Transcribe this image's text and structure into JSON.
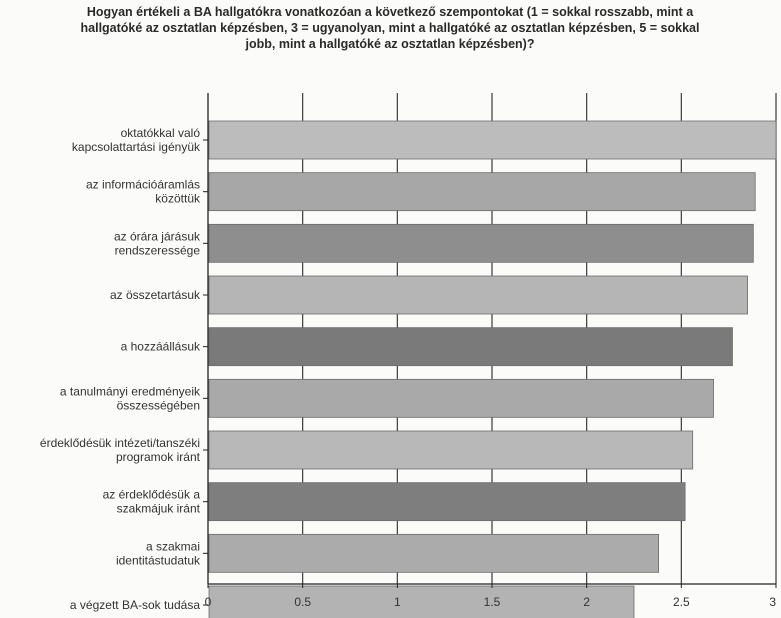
{
  "chart_data": {
    "type": "bar",
    "orientation": "horizontal",
    "title": "Hogyan értékeli a BA hallgatókra vonatkozóan a következő szempontokat (1 = sokkal rosszabb, mint a\nhallgatóké az osztatlan képzésben, 3 = ugyanolyan, mint a hallgatóké az osztatlan képzésben, 5 = sokkal\njobb, mint a hallgatóké az osztatlan képzésben)?",
    "categories": [
      "oktatókkal való kapcsolattartási igényük",
      "az információáramlás közöttük",
      "az órára járásuk rendszeressége",
      "az összetartásuk",
      "a hozzáállásuk",
      "a tanulmányi eredményeik összességében",
      "érdeklődésük intézeti/tanszéki programok iránt",
      "az érdeklődésük a szakmájuk iránt",
      "a szakmai identitástudatuk",
      "a végzett BA-sok tudása"
    ],
    "label_lines": [
      [
        "oktatókkal való",
        "kapcsolattartási igényük"
      ],
      [
        "az információáramlás",
        "közöttük"
      ],
      [
        "az órára járásuk",
        "rendszeressége"
      ],
      [
        "az összetartásuk"
      ],
      [
        "a hozzáállásuk"
      ],
      [
        "a tanulmányi eredményeik",
        "összességében"
      ],
      [
        "érdeklődésük intézeti/tanszéki",
        "programok iránt"
      ],
      [
        "az érdeklődésük a",
        "szakmájuk iránt"
      ],
      [
        "a szakmai",
        "identitástudatuk"
      ],
      [
        "a végzett BA-sok tudása"
      ]
    ],
    "values": [
      3.0,
      2.89,
      2.88,
      2.85,
      2.77,
      2.67,
      2.56,
      2.52,
      2.38,
      2.25
    ],
    "bar_colors": [
      "#bcbcbc",
      "#a7a7a7",
      "#8e8e8e",
      "#b5b5b5",
      "#7a7a7a",
      "#a9a9a9",
      "#b8b8b8",
      "#7e7e7e",
      "#ababab",
      "#b3b3b3"
    ],
    "xlim": [
      0,
      3
    ],
    "xticks": [
      "0",
      "0.5",
      "1",
      "1.5",
      "2",
      "2.5",
      "3"
    ],
    "tick_values": [
      0,
      0.5,
      1,
      1.5,
      2,
      2.5,
      3
    ],
    "grid": true
  }
}
